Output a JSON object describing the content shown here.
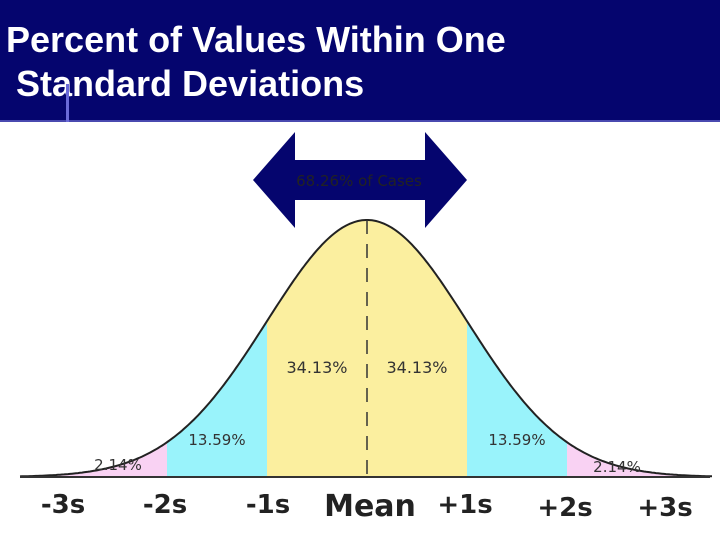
{
  "slide": {
    "title_line1": "Percent of Values Within One",
    "title_line2": " Standard Deviations"
  },
  "arrow": {
    "label": "68.26% of Cases"
  },
  "regions": [
    {
      "id": "left-tail",
      "label": "2.14%",
      "from_sd": -3,
      "to_sd": -2,
      "color": "#f9d2f3"
    },
    {
      "id": "left-mid",
      "label": "13.59%",
      "from_sd": -2,
      "to_sd": -1,
      "color": "#99f3fb"
    },
    {
      "id": "left-center",
      "label": "34.13%",
      "from_sd": -1,
      "to_sd": 0,
      "color": "#fbef9f"
    },
    {
      "id": "right-center",
      "label": "34.13%",
      "from_sd": 0,
      "to_sd": 1,
      "color": "#fbef9f"
    },
    {
      "id": "right-mid",
      "label": "13.59%",
      "from_sd": 1,
      "to_sd": 2,
      "color": "#99f3fb"
    },
    {
      "id": "right-tail",
      "label": "2.14%",
      "from_sd": 2,
      "to_sd": 3,
      "color": "#f9d2f3"
    }
  ],
  "axis_labels": [
    "-3s",
    "-2s",
    "-1s",
    "Mean",
    "+1s",
    "+2s",
    "+3s"
  ],
  "colors": {
    "title_background": "#05056e",
    "arrow": "#05056e",
    "curve_outline": "#222222"
  }
}
